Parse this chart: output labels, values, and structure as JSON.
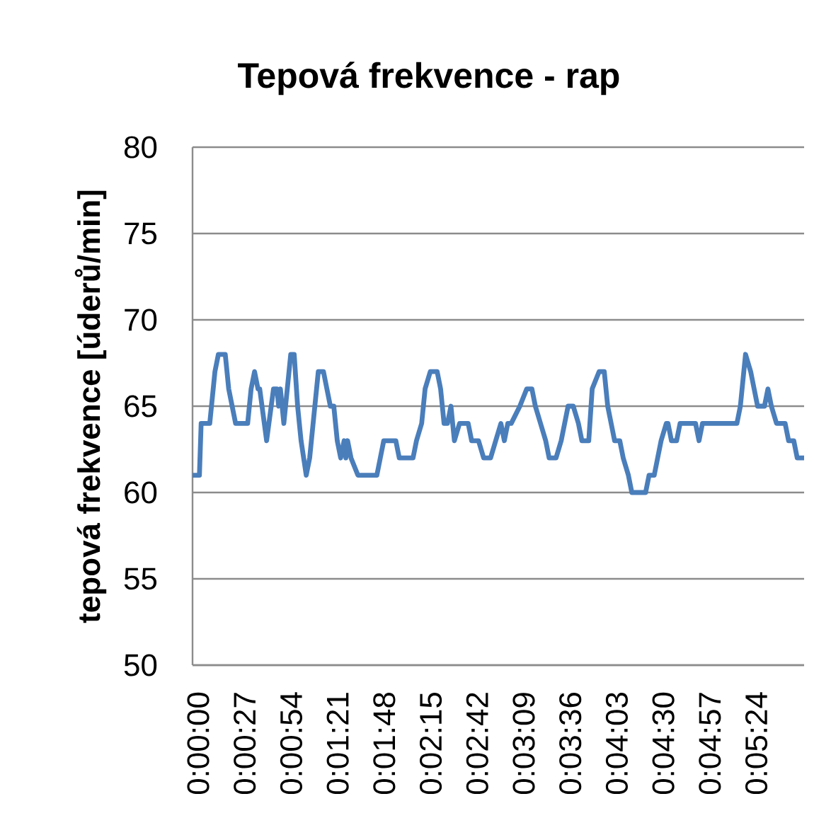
{
  "chart_data": {
    "type": "line",
    "title": "Tepová frekvence - rap",
    "ylabel": "tepová frekvence [úderů/min]",
    "x": [
      0,
      4,
      5,
      10,
      12,
      13,
      15,
      19,
      21,
      23,
      25,
      32,
      34,
      36,
      38,
      39,
      43,
      47,
      49,
      50,
      51,
      53,
      55,
      57,
      59,
      61,
      63,
      66,
      68,
      69,
      71,
      73,
      76,
      78,
      80,
      82,
      83,
      84,
      86,
      88,
      89,
      90,
      92,
      96,
      107,
      109,
      111,
      118,
      120,
      128,
      130,
      133,
      135,
      138,
      142,
      144,
      145,
      146,
      148,
      150,
      152,
      155,
      160,
      162,
      166,
      169,
      173,
      176,
      179,
      181,
      183,
      185,
      190,
      194,
      197,
      199,
      202,
      205,
      207,
      211,
      214,
      218,
      221,
      224,
      226,
      230,
      232,
      236,
      239,
      241,
      243,
      245,
      248,
      250,
      253,
      255,
      263,
      265,
      268,
      270,
      272,
      275,
      276,
      278,
      281,
      283,
      292,
      294,
      296,
      316,
      318,
      319,
      321,
      324,
      326,
      328,
      332,
      334,
      336,
      339,
      344,
      346,
      349,
      351,
      355
    ],
    "values": [
      61,
      61,
      64,
      64,
      66,
      67,
      68,
      68,
      66,
      65,
      64,
      64,
      66,
      67,
      66,
      66,
      63,
      66,
      66,
      65,
      66,
      64,
      66,
      68,
      68,
      65,
      63,
      61,
      62,
      63,
      65,
      67,
      67,
      66,
      65,
      65,
      64,
      63,
      62,
      63,
      62,
      63,
      62,
      61,
      61,
      62,
      63,
      63,
      62,
      62,
      63,
      64,
      66,
      67,
      67,
      66,
      65,
      64,
      64,
      65,
      63,
      64,
      64,
      63,
      63,
      62,
      62,
      63,
      64,
      63,
      64,
      64,
      65,
      66,
      66,
      65,
      64,
      63,
      62,
      62,
      63,
      65,
      65,
      64,
      63,
      63,
      66,
      67,
      67,
      65,
      64,
      63,
      63,
      62,
      61,
      60,
      60,
      61,
      61,
      62,
      63,
      64,
      64,
      63,
      63,
      64,
      64,
      63,
      64,
      64,
      65,
      66,
      68,
      67,
      66,
      65,
      65,
      66,
      65,
      64,
      64,
      63,
      63,
      62,
      62
    ],
    "color": "#4a7ebb",
    "marker": "none",
    "line_style": "solid",
    "grid": "y",
    "xlim": [
      0,
      355
    ],
    "ylim": [
      50,
      80
    ],
    "xticks": [
      {
        "value": 0,
        "label": "0:00:00"
      },
      {
        "value": 27,
        "label": "0:00:27"
      },
      {
        "value": 54,
        "label": "0:00:54"
      },
      {
        "value": 81,
        "label": "0:01:21"
      },
      {
        "value": 108,
        "label": "0:01:48"
      },
      {
        "value": 135,
        "label": "0:02:15"
      },
      {
        "value": 162,
        "label": "0:02:42"
      },
      {
        "value": 189,
        "label": "0:03:09"
      },
      {
        "value": 216,
        "label": "0:03:36"
      },
      {
        "value": 243,
        "label": "0:04:03"
      },
      {
        "value": 270,
        "label": "0:04:30"
      },
      {
        "value": 297,
        "label": "0:04:57"
      },
      {
        "value": 324,
        "label": "0:05:24"
      }
    ],
    "yticks": [
      50,
      55,
      60,
      65,
      70,
      75,
      80
    ]
  }
}
